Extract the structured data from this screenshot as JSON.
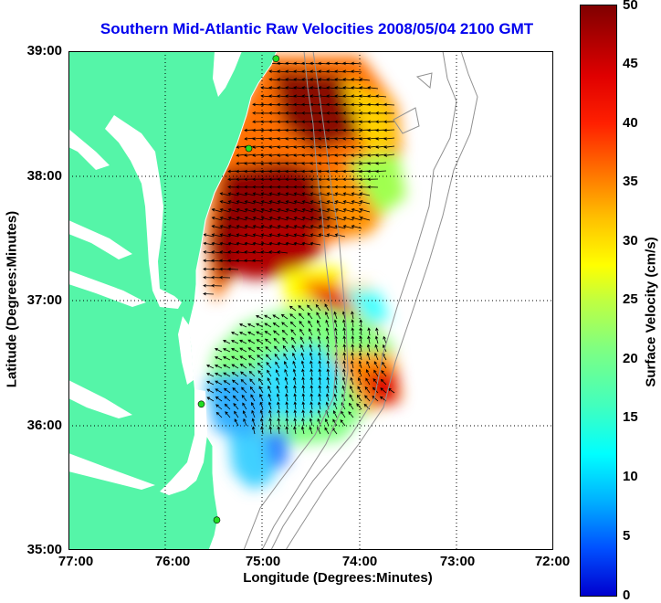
{
  "title": "Southern Mid-Atlantic Raw Velocities 2008/05/04 2100 GMT",
  "axes": {
    "xlabel": "Longitude (Degrees:Minutes)",
    "ylabel": "Latitude (Degrees:Minutes)",
    "xticks": [
      "77:00",
      "76:00",
      "75:00",
      "74:00",
      "73:00",
      "72:00"
    ],
    "yticks": [
      "39:00",
      "38:00",
      "37:00",
      "36:00",
      "35:00"
    ],
    "xlim": [
      -77,
      -72
    ],
    "ylim": [
      35,
      39
    ],
    "grid": "dotted"
  },
  "colorbar": {
    "label": "Surface Velocity (cm/s)",
    "ticks": [
      "50",
      "45",
      "40",
      "35",
      "30",
      "25",
      "20",
      "15",
      "10",
      "5",
      "0"
    ],
    "range": [
      0,
      50
    ]
  },
  "colors": {
    "land": "#55f5a8",
    "title": "#0000ee",
    "station": "#22dd22",
    "arrow": "#000000",
    "bathymetry": "#909090"
  },
  "stations": [
    {
      "lon": -74.86,
      "lat": 38.94
    },
    {
      "lon": -75.14,
      "lat": 38.22
    },
    {
      "lon": -75.63,
      "lat": 36.17
    },
    {
      "lon": -75.47,
      "lat": 35.24
    }
  ]
}
